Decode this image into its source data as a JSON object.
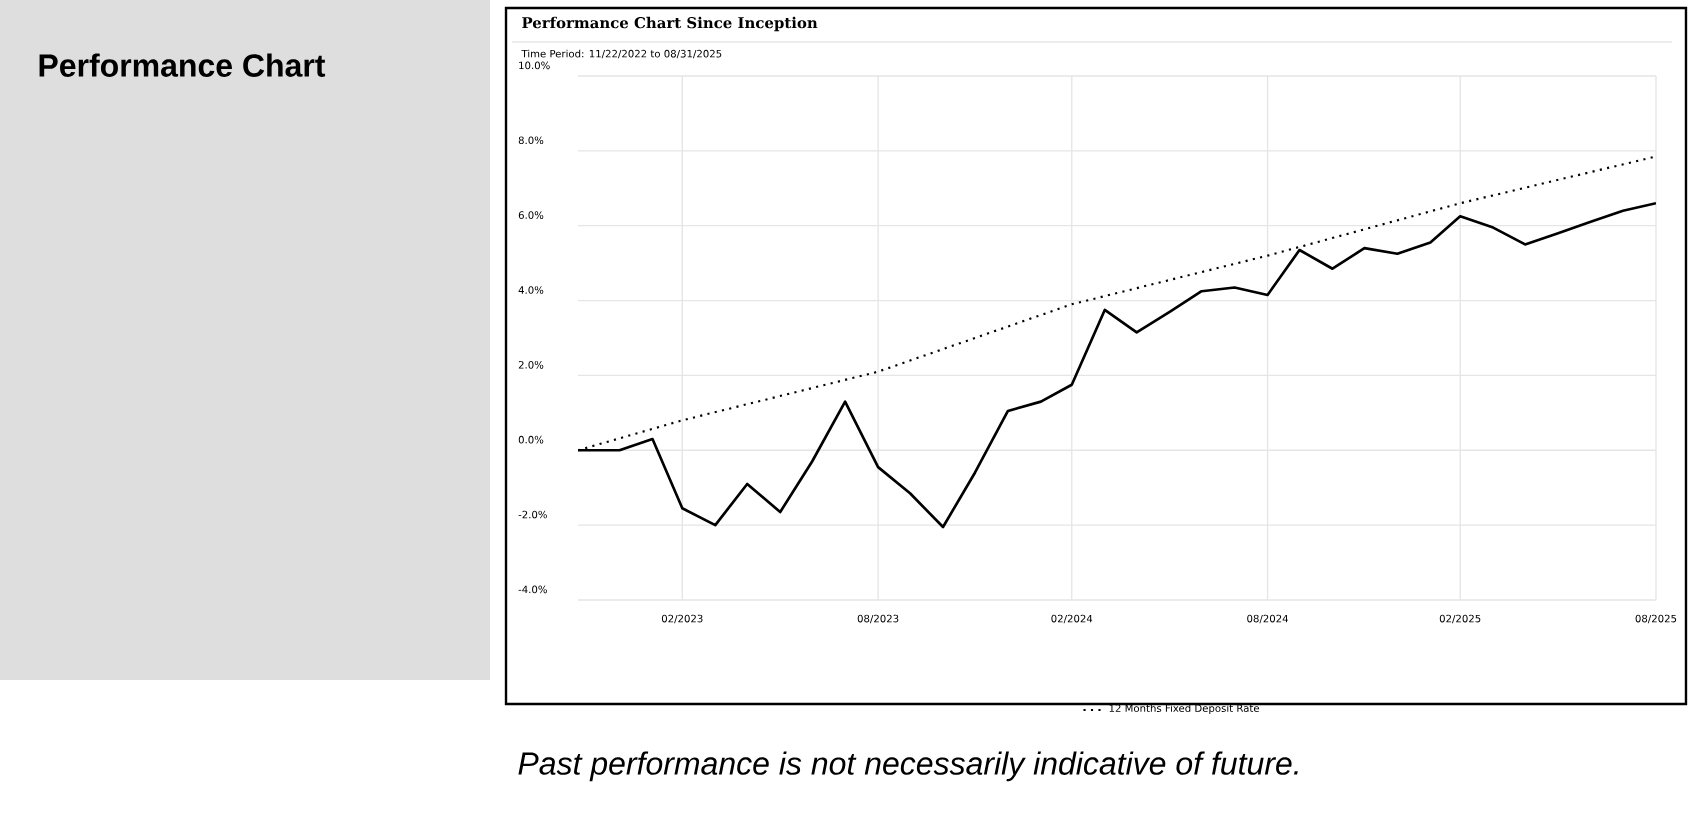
{
  "chart_data": {
    "type": "line",
    "title": "Performance Chart Since Inception",
    "subtitle": "Time Period: 11/22/2022 to 08/31/2025",
    "annotations": [
      "Performance Chart",
      "Past performance is not necessarily indicative of future."
    ],
    "series": [
      {
        "color": "#000000",
        "line_style": "solid",
        "x": [
          "2022-11-22",
          "2022-12-31",
          "2023-01-31",
          "2023-02-28",
          "2023-03-31",
          "2023-04-30",
          "2023-05-31",
          "2023-06-30",
          "2023-07-31",
          "2023-08-31",
          "2023-09-30",
          "2023-10-31",
          "2023-11-30",
          "2023-12-31",
          "2024-01-31",
          "2024-02-29",
          "2024-03-31",
          "2024-04-30",
          "2024-05-31",
          "2024-06-30",
          "2024-07-31",
          "2024-08-31",
          "2024-09-30",
          "2024-10-31",
          "2024-11-30",
          "2024-12-31",
          "2025-01-31",
          "2025-02-28",
          "2025-03-31",
          "2025-04-30",
          "2025-05-31",
          "2025-06-30",
          "2025-07-31",
          "2025-08-31"
        ],
        "values": [
          0,
          0,
          0.3,
          -1.55,
          -2.0,
          -0.9,
          -1.65,
          -0.3,
          1.3,
          -0.45,
          -1.15,
          -2.05,
          -0.6,
          1.05,
          1.3,
          1.75,
          3.75,
          3.15,
          3.7,
          4.25,
          4.35,
          4.15,
          5.35,
          4.85,
          5.4,
          5.25,
          5.55,
          6.25,
          5.95,
          5.5,
          5.8,
          6.1,
          6.4,
          6.6
        ]
      },
      {
        "name": "12 Months Fixed Deposit Rate",
        "color": "#000000",
        "line_style": "dotted",
        "x": [
          "2022-11-22",
          "2023-02-28",
          "2023-08-31",
          "2024-02-29",
          "2024-08-31",
          "2025-02-28",
          "2025-08-31"
        ],
        "values": [
          0,
          0.8,
          2.1,
          3.9,
          5.2,
          6.6,
          7.85
        ]
      }
    ],
    "xlim": [
      "2022-11-22",
      "2025-08-31"
    ],
    "xticks": [
      {
        "value": "2023-02-28",
        "label": "02/2023"
      },
      {
        "value": "2023-08-31",
        "label": "08/2023"
      },
      {
        "value": "2024-02-29",
        "label": "02/2024"
      },
      {
        "value": "2024-08-31",
        "label": "08/2024"
      },
      {
        "value": "2025-02-28",
        "label": "02/2025"
      },
      {
        "value": "2025-08-31",
        "label": "08/2025"
      }
    ],
    "ylim": [
      -4,
      10
    ],
    "yticks": [
      {
        "value": -4,
        "label": "-4.0%"
      },
      {
        "value": -2,
        "label": "-2.0%"
      },
      {
        "value": 0,
        "label": "0.0%"
      },
      {
        "value": 2,
        "label": "2.0%"
      },
      {
        "value": 4,
        "label": "4.0%"
      },
      {
        "value": 6,
        "label": "6.0%"
      },
      {
        "value": 8,
        "label": "8.0%"
      },
      {
        "value": 10,
        "label": "10.0%"
      }
    ],
    "grid": true,
    "legend": "bottom",
    "marker": "none"
  }
}
